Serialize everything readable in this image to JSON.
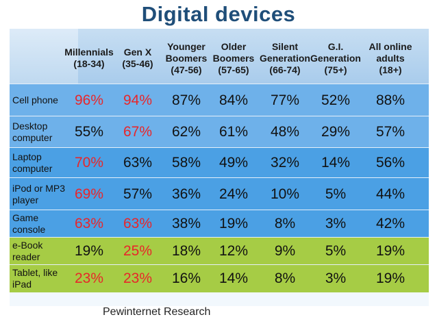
{
  "title": "Digital devices",
  "source": "Pewinternet Research",
  "colors": {
    "title": "#1f4e79",
    "highlight": "#e8262a",
    "row_light_blue": "#6eb1ea",
    "row_medium_blue": "#4ba0e4",
    "row_green": "#a6cc45",
    "header_blue": "#c7def2"
  },
  "columns": [
    {
      "lines": [
        "Millennials",
        "(18-34)"
      ]
    },
    {
      "lines": [
        "Gen X",
        "(35-46)"
      ]
    },
    {
      "lines": [
        "Younger",
        "Boomers",
        "(47-56)"
      ]
    },
    {
      "lines": [
        "Older",
        "Boomers",
        "(57-65)"
      ]
    },
    {
      "lines": [
        "Silent",
        "Generation",
        "(66-74)"
      ]
    },
    {
      "lines": [
        "G.I.",
        "Generation",
        "(75+)"
      ]
    },
    {
      "lines": [
        "All online",
        "adults",
        "(18+)"
      ]
    }
  ],
  "rows": [
    {
      "label": [
        "Cell phone"
      ],
      "values": [
        "96%",
        "94%",
        "87%",
        "84%",
        "77%",
        "52%",
        "88%"
      ],
      "highlight": [
        0,
        1
      ],
      "color": "#6eb1ea"
    },
    {
      "label": [
        "Desktop",
        "computer"
      ],
      "values": [
        "55%",
        "67%",
        "62%",
        "61%",
        "48%",
        "29%",
        "57%"
      ],
      "highlight": [
        1
      ],
      "color": "#6eb1ea"
    },
    {
      "label": [
        "Laptop",
        "computer"
      ],
      "values": [
        "70%",
        "63%",
        "58%",
        "49%",
        "32%",
        "14%",
        "56%"
      ],
      "highlight": [
        0
      ],
      "color": "#4ba0e4"
    },
    {
      "label": [
        "iPod or MP3",
        "player"
      ],
      "values": [
        "69%",
        "57%",
        "36%",
        "24%",
        "10%",
        "5%",
        "44%"
      ],
      "highlight": [
        0
      ],
      "color": "#4ba0e4"
    },
    {
      "label": [
        "Game",
        "console"
      ],
      "values": [
        "63%",
        "63%",
        "38%",
        "19%",
        "8%",
        "3%",
        "42%"
      ],
      "highlight": [
        0,
        1
      ],
      "color": "#4ba0e4"
    },
    {
      "label": [
        "e-Book",
        "reader"
      ],
      "values": [
        "19%",
        "25%",
        "18%",
        "12%",
        "9%",
        "5%",
        "19%"
      ],
      "highlight": [
        1
      ],
      "color": "#a6cc45"
    },
    {
      "label": [
        "Tablet, like",
        "iPad"
      ],
      "values": [
        "23%",
        "23%",
        "16%",
        "14%",
        "8%",
        "3%",
        "19%"
      ],
      "highlight": [
        0,
        1
      ],
      "color": "#a6cc45"
    }
  ]
}
